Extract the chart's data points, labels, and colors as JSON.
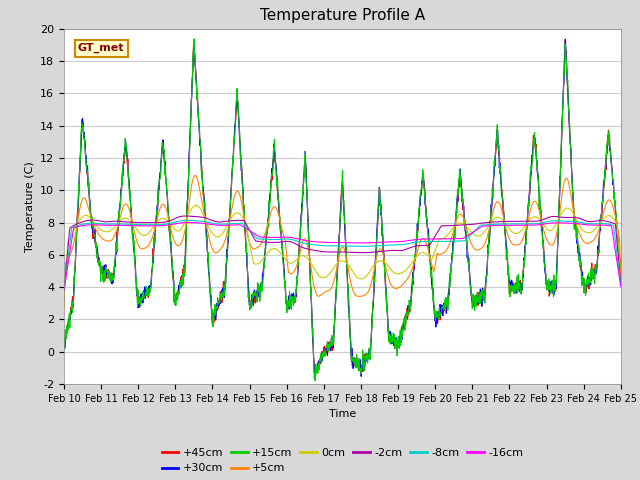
{
  "title": "Temperature Profile A",
  "xlabel": "Time",
  "ylabel": "Temperature (C)",
  "annotation": "GT_met",
  "ylim": [
    -2,
    20
  ],
  "n_days": 15,
  "fig_bg": "#d8d8d8",
  "plot_bg": "#ffffff",
  "series": [
    {
      "label": "+45cm",
      "color": "#ff0000"
    },
    {
      "label": "+30cm",
      "color": "#0000ff"
    },
    {
      "label": "+15cm",
      "color": "#00cc00"
    },
    {
      "label": "+5cm",
      "color": "#ff8800"
    },
    {
      "label": "0cm",
      "color": "#cccc00"
    },
    {
      "label": "-2cm",
      "color": "#aa00aa"
    },
    {
      "label": "-8cm",
      "color": "#00cccc"
    },
    {
      "label": "-16cm",
      "color": "#ff00ff"
    }
  ],
  "xtick_labels": [
    "Feb 10",
    "Feb 11",
    "Feb 12",
    "Feb 13",
    "Feb 14",
    "Feb 15",
    "Feb 16",
    "Feb 17",
    "Feb 18",
    "Feb 19",
    "Feb 20",
    "Feb 21",
    "Feb 22",
    "Feb 23",
    "Feb 24",
    "Feb 25"
  ],
  "ytick_labels": [
    -2,
    0,
    2,
    4,
    6,
    8,
    10,
    12,
    14,
    16,
    18,
    20
  ],
  "title_fontsize": 11,
  "tick_fontsize": 7,
  "label_fontsize": 8,
  "legend_fontsize": 8
}
